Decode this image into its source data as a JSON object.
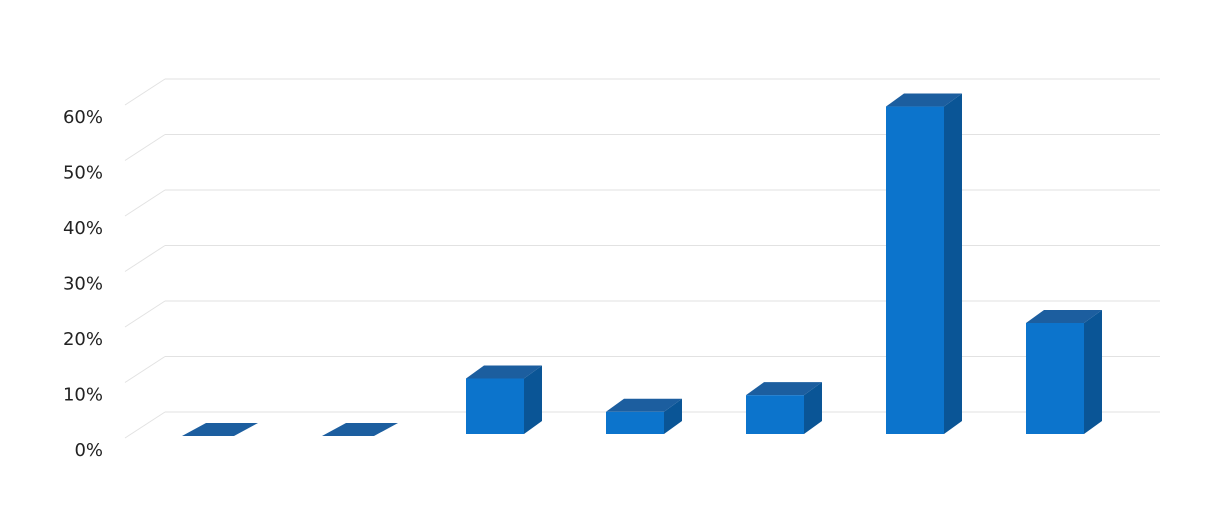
{
  "chart_data": {
    "type": "bar",
    "style": "3d-column",
    "categories": [
      "",
      "",
      "",
      "",
      "",
      "",
      ""
    ],
    "values": [
      0,
      0,
      10,
      4,
      7,
      59,
      20
    ],
    "ylim": [
      0,
      60
    ],
    "yticks": [
      0,
      10,
      20,
      30,
      40,
      50,
      60
    ],
    "ytick_labels": [
      "0%",
      "10%",
      "20%",
      "30%",
      "40%",
      "50%",
      "60%"
    ],
    "title": "",
    "xlabel": "",
    "ylabel": "",
    "grid": true,
    "legend": "none",
    "colors": {
      "front": "#0C74CC",
      "side": "#0A5596",
      "top": "#1C5E9F",
      "grid": "#e2e2e2",
      "background": "#ffffff"
    }
  }
}
